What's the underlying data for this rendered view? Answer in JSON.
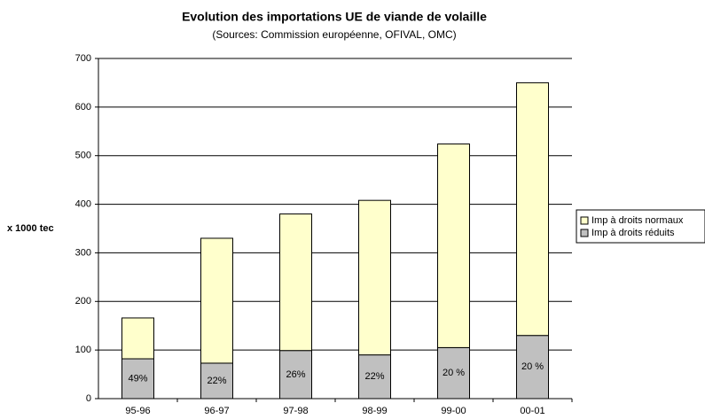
{
  "chart_data": {
    "type": "stacked_bar",
    "title": "Evolution des importations UE de viande de volaille",
    "subtitle": "(Sources: Commission européenne, OFIVAL, OMC)",
    "y_label": "x 1000 tec",
    "categories": [
      "95-96",
      "96-97",
      "97-98",
      "98-99",
      "99-00",
      "00-01"
    ],
    "series": [
      {
        "name": "Imp à droits réduits",
        "color": "#c0c0c0",
        "values": [
          82,
          73,
          99,
          90,
          105,
          130
        ]
      },
      {
        "name": "Imp à droits normaux",
        "color": "#ffffcc",
        "values": [
          84,
          257,
          281,
          318,
          419,
          520
        ]
      }
    ],
    "annotations": [
      "49%",
      "22%",
      "26%",
      "22%",
      "20 %",
      "20 %"
    ],
    "ylim": [
      0,
      700
    ],
    "yticks": [
      0,
      100,
      200,
      300,
      400,
      500,
      600,
      700
    ],
    "grid": true,
    "legend": "right"
  }
}
